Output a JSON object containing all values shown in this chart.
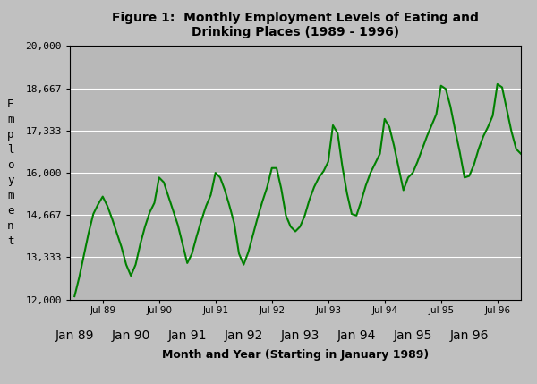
{
  "title": "Figure 1:  Monthly Employment Levels of Eating and\nDrinking Places (1989 - 1996)",
  "xlabel": "Month and Year (Starting in January 1989)",
  "ylabel": "E\nm\np\nl\no\ny\nm\ne\nn\nt",
  "line_color": "#008000",
  "bg_color": "#c0c0c0",
  "plot_bg_color": "#b8b8b8",
  "ylim": [
    12000,
    20000
  ],
  "yticks": [
    12000,
    13333,
    14667,
    16000,
    17333,
    18667,
    20000
  ],
  "ytick_labels": [
    "12,000",
    "13,333",
    "14,667",
    "16,000",
    "17,333",
    "18,667",
    "20,000"
  ],
  "jul_positions": [
    6,
    18,
    30,
    42,
    54,
    66,
    78,
    90
  ],
  "jul_labels": [
    "Jul 89",
    "Jul 90",
    "Jul 91",
    "Jul 92",
    "Jul 93",
    "Jul 94",
    "Jul 95",
    "Jul 96"
  ],
  "jan_positions": [
    0,
    12,
    24,
    36,
    48,
    60,
    72,
    84
  ],
  "jan_labels": [
    "Jan 89",
    "Jan 90",
    "Jan 91",
    "Jan 92",
    "Jan 93",
    "Jan 94",
    "Jan 95",
    "Jan 96"
  ],
  "values": [
    12100,
    12700,
    13400,
    14100,
    14700,
    15000,
    15250,
    14950,
    14550,
    14100,
    13650,
    13100,
    12750,
    13100,
    13750,
    14300,
    14750,
    15050,
    15850,
    15700,
    15250,
    14800,
    14350,
    13750,
    13150,
    13450,
    14000,
    14500,
    14950,
    15300,
    16000,
    15850,
    15450,
    14950,
    14400,
    13450,
    13100,
    13500,
    14050,
    14600,
    15100,
    15550,
    16150,
    16150,
    15500,
    14650,
    14300,
    14150,
    14300,
    14650,
    15150,
    15550,
    15850,
    16050,
    16350,
    17500,
    17250,
    16200,
    15350,
    14700,
    14650,
    15100,
    15600,
    16000,
    16300,
    16600,
    17700,
    17450,
    16850,
    16150,
    15450,
    15850,
    16000,
    16350,
    16750,
    17150,
    17500,
    17850,
    18750,
    18650,
    18100,
    17350,
    16650,
    15850,
    15900,
    16250,
    16750,
    17150,
    17450,
    17800,
    18800,
    18700,
    18000,
    17300,
    16750,
    16600
  ]
}
